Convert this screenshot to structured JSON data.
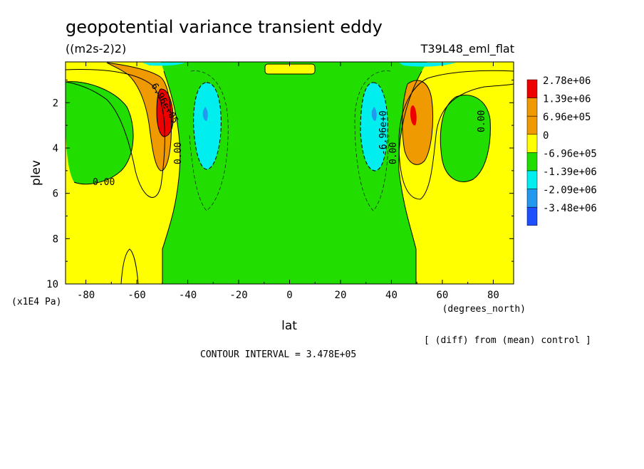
{
  "header": {
    "title": "geopotential variance transient eddy",
    "units": "((m2s-2)2)",
    "run_name": "T39L48_eml_flat"
  },
  "footer": {
    "diff_note": "[ (diff) from (mean) control ]",
    "contour_interval": "CONTOUR INTERVAL = 3.478E+05"
  },
  "colors": {
    "red": "#ee0000",
    "orange": "#ee9a00",
    "yellow": "#ffff00",
    "green": "#22dd00",
    "cyan": "#00eeee",
    "blue_mid": "#2299ee",
    "blue_dark": "#1e50ff"
  },
  "chart_data": {
    "type": "contour",
    "xlabel": "lat",
    "xunit": "(degrees_north)",
    "ylabel": "plev",
    "yunit": "(x1E4 Pa)",
    "xlim": [
      -88,
      88
    ],
    "ylim": [
      0.2,
      10
    ],
    "y_inverted": true,
    "xticks": [
      -80,
      -60,
      -40,
      -20,
      0,
      20,
      40,
      60,
      80
    ],
    "xtick_labels": [
      "-80",
      "-60",
      "-40",
      "-20",
      "0",
      "20",
      "40",
      "60",
      "80"
    ],
    "yticks": [
      2,
      4,
      6,
      8,
      10
    ],
    "ytick_labels": [
      "2",
      "4",
      "6",
      "8",
      "10"
    ],
    "legend": {
      "placement": "right",
      "levels": [
        {
          "label": "2.78e+06",
          "color": "#ee0000"
        },
        {
          "label": "1.39e+06",
          "color": "#ee9a00"
        },
        {
          "label": "6.96e+05",
          "color": "#ee9a00"
        },
        {
          "label": "0",
          "color": "#ffff00"
        },
        {
          "label": "-6.96e+05",
          "color": "#22dd00"
        },
        {
          "label": "-1.39e+06",
          "color": "#00eeee"
        },
        {
          "label": "-2.09e+06",
          "color": "#2299ee"
        },
        {
          "label": "-3.48e+06",
          "color": "#1e50ff"
        }
      ]
    },
    "contour_labels": [
      "6.96e+05",
      "0.00",
      "0.00",
      "-6.96e+0",
      "0.00",
      "0.00"
    ],
    "features": [
      {
        "kind": "max",
        "lat": -50,
        "plev": 2.6,
        "value": 2780000
      },
      {
        "kind": "max",
        "lat": 49,
        "plev": 2.4,
        "value": 1390000
      },
      {
        "kind": "min",
        "lat": -34,
        "plev": 2.6,
        "value": -1390000
      },
      {
        "kind": "min",
        "lat": 33,
        "plev": 2.6,
        "value": -1390000
      },
      {
        "kind": "min",
        "lat": -75,
        "plev": 3.5,
        "value": -348000
      },
      {
        "kind": "min",
        "lat": 73,
        "plev": 3.2,
        "value": -348000
      }
    ]
  }
}
